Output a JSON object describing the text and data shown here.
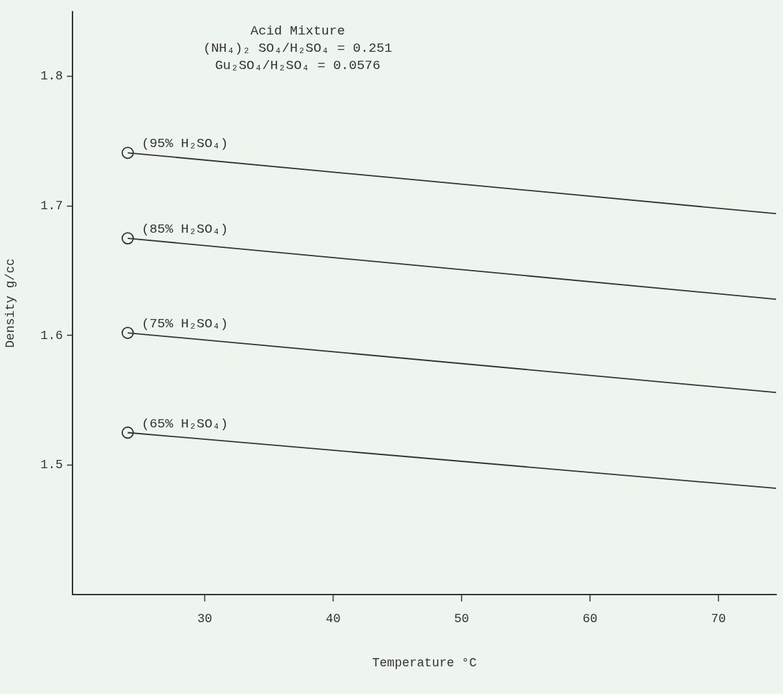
{
  "chart_data": {
    "type": "line",
    "title": "Acid Mixture",
    "annotations": [
      "(NH₄)₂ SO₄/H₂SO₄ = 0.251",
      "Gu₂SO₄/H₂SO₄ = 0.0576"
    ],
    "xlabel": "Temperature °C",
    "ylabel": "Density g/cc",
    "xlim": [
      19.7,
      74.5
    ],
    "xticks": [
      30,
      40,
      50,
      60,
      70
    ],
    "ylim": [
      1.4,
      1.85
    ],
    "yticks": [
      1.5,
      1.6,
      1.7,
      1.8
    ],
    "grid": false,
    "legend": false,
    "marker": "circle",
    "x": [
      24,
      74.5
    ],
    "series": [
      {
        "name": "(95% H₂SO₄)",
        "color": "#333333",
        "values": [
          1.741,
          1.694
        ]
      },
      {
        "name": "(85% H₂SO₄)",
        "color": "#333333",
        "values": [
          1.675,
          1.628
        ]
      },
      {
        "name": "(75% H₂SO₄)",
        "color": "#333333",
        "values": [
          1.602,
          1.556
        ]
      },
      {
        "name": "(65% H₂SO₄)",
        "color": "#333333",
        "values": [
          1.525,
          1.482
        ]
      }
    ]
  }
}
